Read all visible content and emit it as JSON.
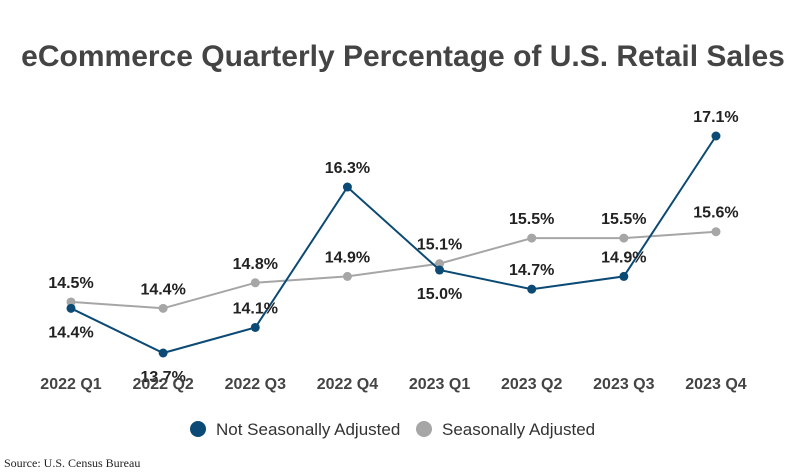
{
  "chart_data": {
    "type": "line",
    "title": "eCommerce Quarterly Percentage of U.S. Retail Sales",
    "categories": [
      "2022 Q1",
      "2022 Q2",
      "2022 Q3",
      "2022 Q4",
      "2023 Q1",
      "2023 Q2",
      "2023 Q3",
      "2023 Q4"
    ],
    "series": [
      {
        "name": "Not Seasonally Adjusted",
        "color": "#0b4a75",
        "values": [
          14.4,
          13.7,
          14.1,
          16.3,
          15.0,
          14.7,
          14.9,
          17.1
        ],
        "labels": [
          "14.4%",
          "13.7%",
          "14.1%",
          "16.3%",
          "15.0%",
          "14.7%",
          "14.9%",
          "17.1%"
        ]
      },
      {
        "name": "Seasonally Adjusted",
        "color": "#a6a6a6",
        "values": [
          14.5,
          14.4,
          14.8,
          14.9,
          15.1,
          15.5,
          15.5,
          15.6
        ],
        "labels": [
          "14.5%",
          "14.4%",
          "14.8%",
          "14.9%",
          "15.1%",
          "15.5%",
          "15.5%",
          "15.6%"
        ]
      }
    ],
    "xlabel": "",
    "ylabel": "",
    "grid": false,
    "legend": "bottom"
  },
  "source": "Source: U.S. Census Bureau"
}
